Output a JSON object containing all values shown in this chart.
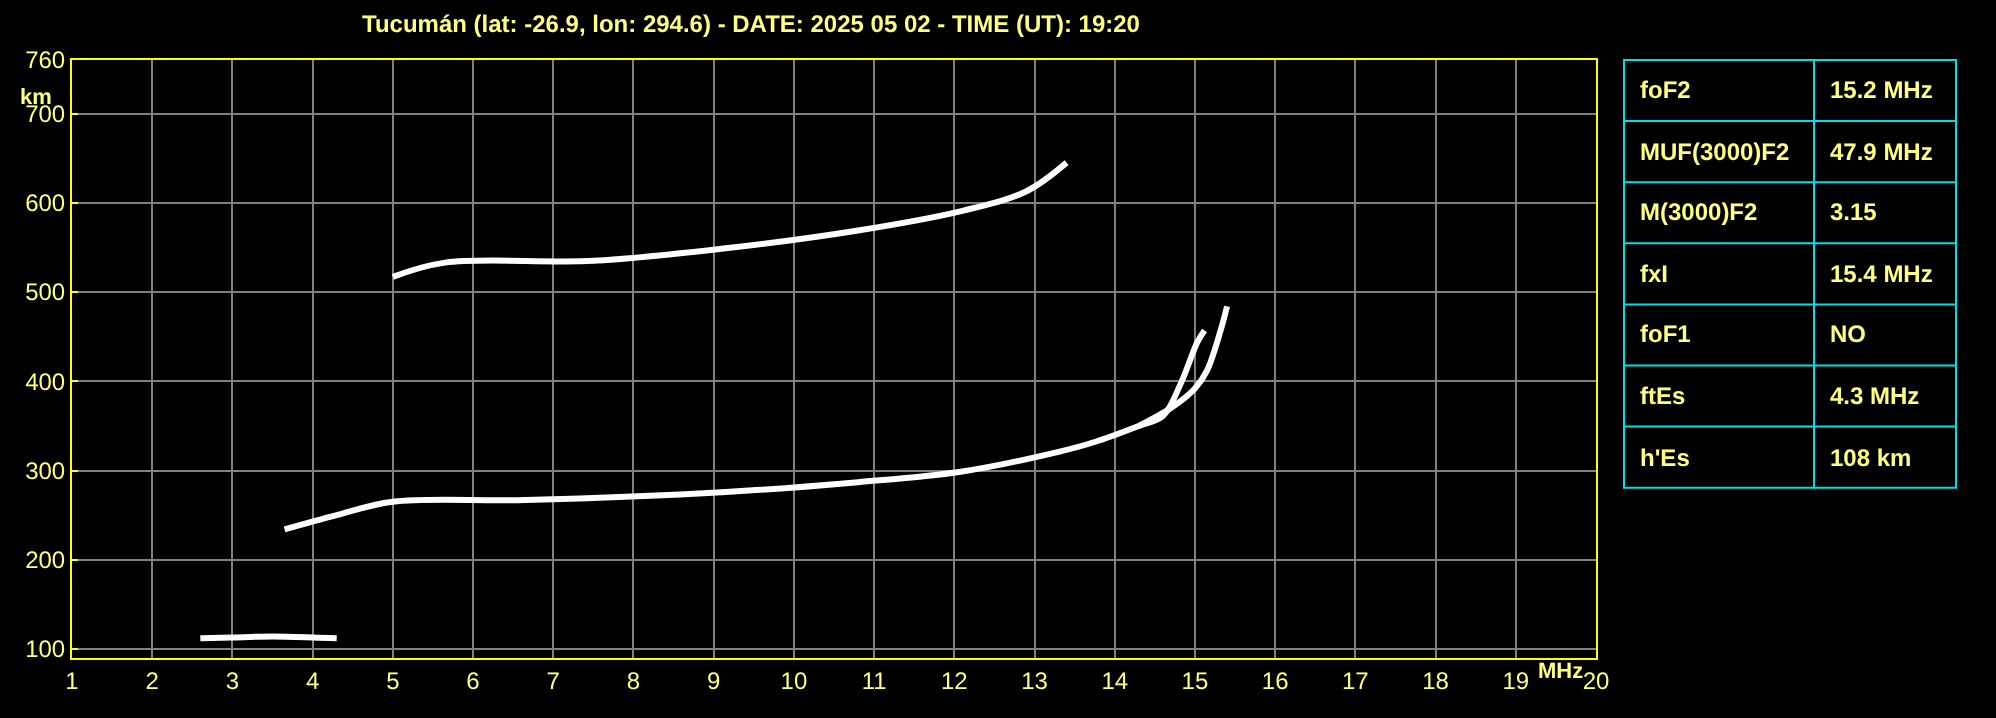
{
  "chart_data": [
    {
      "type": "line",
      "title": "Tucumán (lat: -26.9, lon: 294.6) - DATE: 2025 05 02 - TIME (UT): 19:20",
      "xlabel": "MHz",
      "ylabel": "km",
      "xlim": [
        1,
        20
      ],
      "ylim": [
        90,
        760
      ],
      "xticks": [
        1,
        2,
        3,
        4,
        5,
        6,
        7,
        8,
        9,
        10,
        11,
        12,
        13,
        14,
        15,
        16,
        17,
        18,
        19,
        20
      ],
      "yticks": [
        100,
        200,
        300,
        400,
        500,
        600,
        700,
        760
      ],
      "grid": true,
      "marker": "none",
      "line_style": "solid",
      "series": [
        {
          "color": "#ffffff",
          "x": [
            2.6,
            3.0,
            3.5,
            4.0,
            4.3
          ],
          "values": [
            112,
            113,
            114,
            113,
            112
          ]
        },
        {
          "color": "#ffffff",
          "x": [
            3.65,
            4.3,
            5.0,
            6.65,
            9.15,
            10.8,
            12.1,
            13.3,
            13.75,
            14.3,
            14.6,
            14.83,
            15.03,
            15.12
          ],
          "values": [
            234,
            250,
            265,
            267,
            276,
            287,
            299,
            321,
            332,
            350,
            361,
            399,
            444,
            457
          ]
        },
        {
          "color": "#ffffff",
          "x": [
            14.3,
            14.7,
            15.0,
            15.15,
            15.32,
            15.4
          ],
          "values": [
            350,
            370,
            392,
            412,
            457,
            484
          ]
        },
        {
          "color": "#ffffff",
          "x": [
            5.0,
            5.65,
            7.5,
            9.15,
            10.8,
            12.1,
            12.9,
            13.4
          ],
          "values": [
            517,
            533,
            535,
            549,
            569,
            591,
            613,
            645
          ]
        }
      ]
    },
    {
      "type": "other",
      "annotations": [
        "foF2",
        "15.2 MHz",
        "MUF(3000)F2",
        "47.9 MHz",
        "M(3000)F2",
        "3.15",
        "fxI",
        "15.4 MHz",
        "foF1",
        "NO",
        "ftEs",
        "4.3 MHz",
        "h'Es",
        "108 km"
      ]
    }
  ]
}
